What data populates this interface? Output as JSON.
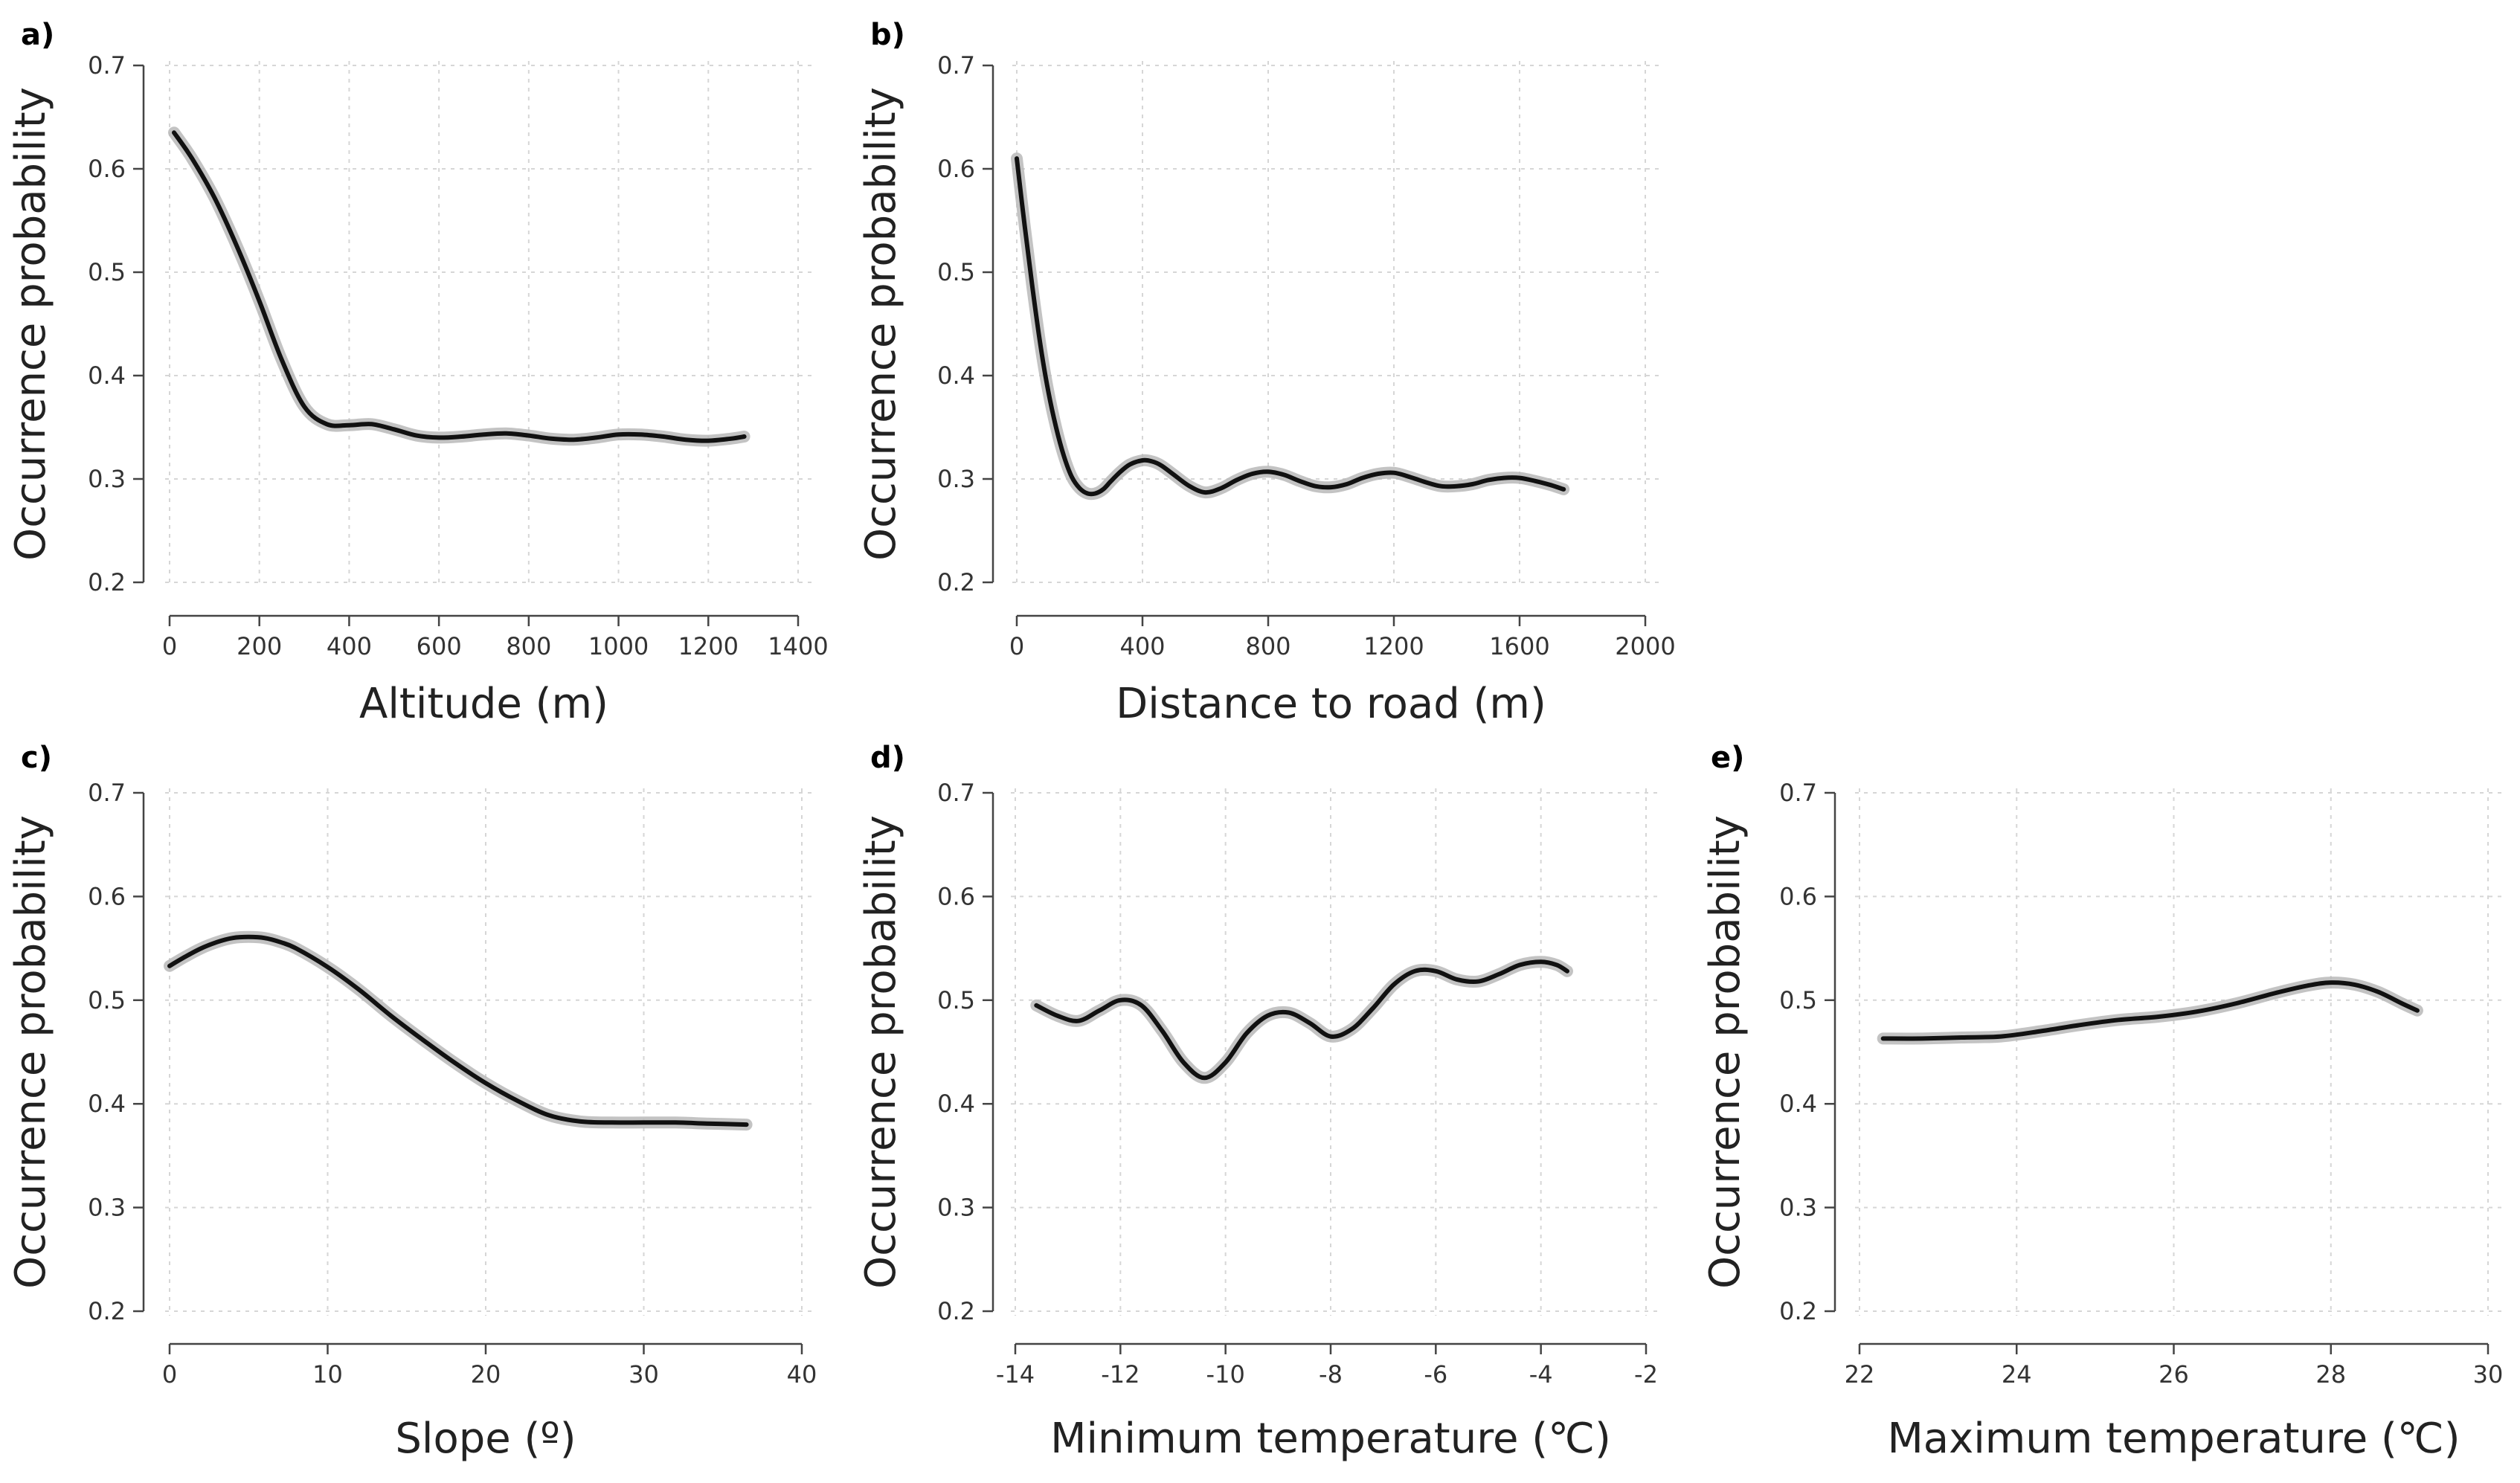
{
  "chart_data": [
    {
      "type": "line",
      "panel": "a)",
      "xlabel": "Altitude (m)",
      "ylabel": "Occurrence probability",
      "xlim": [
        0,
        1400
      ],
      "ylim": [
        0.2,
        0.7
      ],
      "xticks": [
        "0",
        "200",
        "400",
        "600",
        "800",
        "1000",
        "1200",
        "1400"
      ],
      "xtick_values": [
        0,
        200,
        400,
        600,
        800,
        1000,
        1200,
        1400
      ],
      "yticks": [
        "0.2",
        "0.3",
        "0.4",
        "0.5",
        "0.6",
        "0.7"
      ],
      "ytick_values": [
        0.2,
        0.3,
        0.4,
        0.5,
        0.6,
        0.7
      ],
      "grid": true,
      "x": [
        10,
        50,
        100,
        150,
        200,
        250,
        300,
        350,
        400,
        450,
        500,
        550,
        600,
        650,
        700,
        750,
        800,
        850,
        900,
        950,
        1000,
        1050,
        1100,
        1150,
        1200,
        1250,
        1280
      ],
      "y": [
        0.635,
        0.61,
        0.572,
        0.525,
        0.472,
        0.415,
        0.37,
        0.353,
        0.352,
        0.353,
        0.348,
        0.342,
        0.34,
        0.341,
        0.343,
        0.344,
        0.342,
        0.339,
        0.338,
        0.34,
        0.343,
        0.343,
        0.341,
        0.338,
        0.337,
        0.339,
        0.341
      ]
    },
    {
      "type": "line",
      "panel": "b)",
      "xlabel": "Distance to road (m)",
      "ylabel": "Occurrence probability",
      "xlim": [
        0,
        2000
      ],
      "ylim": [
        0.2,
        0.7
      ],
      "xticks": [
        "0",
        "400",
        "800",
        "1200",
        "1600",
        "2000"
      ],
      "xtick_values": [
        0,
        400,
        800,
        1200,
        1600,
        2000
      ],
      "yticks": [
        "0.2",
        "0.3",
        "0.4",
        "0.5",
        "0.6",
        "0.7"
      ],
      "ytick_values": [
        0.2,
        0.3,
        0.4,
        0.5,
        0.6,
        0.7
      ],
      "grid": true,
      "x": [
        0,
        25,
        50,
        75,
        100,
        125,
        150,
        175,
        200,
        225,
        250,
        275,
        300,
        330,
        360,
        400,
        430,
        460,
        500,
        550,
        600,
        650,
        700,
        750,
        800,
        850,
        900,
        950,
        1000,
        1050,
        1100,
        1150,
        1200,
        1250,
        1300,
        1350,
        1400,
        1450,
        1500,
        1550,
        1600,
        1650,
        1700,
        1740
      ],
      "y": [
        0.61,
        0.545,
        0.485,
        0.43,
        0.385,
        0.35,
        0.322,
        0.302,
        0.291,
        0.286,
        0.286,
        0.29,
        0.298,
        0.307,
        0.314,
        0.318,
        0.317,
        0.313,
        0.304,
        0.293,
        0.287,
        0.291,
        0.299,
        0.305,
        0.307,
        0.304,
        0.298,
        0.293,
        0.292,
        0.295,
        0.301,
        0.305,
        0.306,
        0.302,
        0.297,
        0.293,
        0.293,
        0.295,
        0.299,
        0.301,
        0.301,
        0.298,
        0.294,
        0.29
      ]
    },
    {
      "type": "line",
      "panel": "c)",
      "xlabel": "Slope (º)",
      "ylabel": "Occurrence probability",
      "xlim": [
        0,
        40
      ],
      "ylim": [
        0.2,
        0.7
      ],
      "xticks": [
        "0",
        "10",
        "20",
        "30",
        "40"
      ],
      "xtick_values": [
        0,
        10,
        20,
        30,
        40
      ],
      "yticks": [
        "0.2",
        "0.3",
        "0.4",
        "0.5",
        "0.6",
        "0.7"
      ],
      "ytick_values": [
        0.2,
        0.3,
        0.4,
        0.5,
        0.6,
        0.7
      ],
      "grid": true,
      "x": [
        0,
        1,
        2,
        3,
        4,
        5,
        6,
        7,
        8,
        10,
        12,
        14,
        16,
        18,
        20,
        22,
        24,
        26,
        28,
        30,
        32,
        34,
        36.5
      ],
      "y": [
        0.533,
        0.542,
        0.55,
        0.556,
        0.56,
        0.561,
        0.56,
        0.556,
        0.55,
        0.532,
        0.51,
        0.485,
        0.462,
        0.44,
        0.42,
        0.403,
        0.389,
        0.383,
        0.382,
        0.382,
        0.382,
        0.381,
        0.38
      ]
    },
    {
      "type": "line",
      "panel": "d)",
      "xlabel": "Minimum temperature (℃)",
      "ylabel": "Occurrence probability",
      "xlim": [
        -14,
        -2
      ],
      "ylim": [
        0.2,
        0.7
      ],
      "xticks": [
        "-14",
        "-12",
        "-10",
        "-8",
        "-6",
        "-4",
        "-2"
      ],
      "xtick_values": [
        -14,
        -12,
        -10,
        -8,
        -6,
        -4,
        -2
      ],
      "yticks": [
        "0.2",
        "0.3",
        "0.4",
        "0.5",
        "0.6",
        "0.7"
      ],
      "ytick_values": [
        0.2,
        0.3,
        0.4,
        0.5,
        0.6,
        0.7
      ],
      "grid": true,
      "x": [
        -13.6,
        -13.2,
        -12.8,
        -12.4,
        -12.0,
        -11.6,
        -11.2,
        -10.8,
        -10.4,
        -10.0,
        -9.6,
        -9.2,
        -8.8,
        -8.4,
        -8.0,
        -7.6,
        -7.2,
        -6.8,
        -6.4,
        -6.0,
        -5.6,
        -5.2,
        -4.8,
        -4.4,
        -4.0,
        -3.7,
        -3.5
      ],
      "y": [
        0.495,
        0.485,
        0.48,
        0.49,
        0.5,
        0.495,
        0.47,
        0.44,
        0.425,
        0.44,
        0.468,
        0.485,
        0.488,
        0.478,
        0.465,
        0.472,
        0.492,
        0.515,
        0.528,
        0.528,
        0.52,
        0.518,
        0.525,
        0.534,
        0.537,
        0.534,
        0.528
      ]
    },
    {
      "type": "line",
      "panel": "e)",
      "xlabel": "Maximum temperature (℃)",
      "ylabel": "Occurrence probability",
      "xlim": [
        22,
        30
      ],
      "ylim": [
        0.2,
        0.7
      ],
      "xticks": [
        "22",
        "24",
        "26",
        "28",
        "30"
      ],
      "xtick_values": [
        22,
        24,
        26,
        28,
        30
      ],
      "yticks": [
        "0.2",
        "0.3",
        "0.4",
        "0.5",
        "0.6",
        "0.7"
      ],
      "ytick_values": [
        0.2,
        0.3,
        0.4,
        0.5,
        0.6,
        0.7
      ],
      "grid": true,
      "x": [
        22.3,
        22.8,
        23.3,
        23.8,
        24.3,
        24.8,
        25.3,
        25.8,
        26.3,
        26.8,
        27.3,
        27.7,
        28.0,
        28.3,
        28.6,
        28.9,
        29.1
      ],
      "y": [
        0.463,
        0.463,
        0.464,
        0.465,
        0.47,
        0.476,
        0.481,
        0.484,
        0.489,
        0.497,
        0.507,
        0.514,
        0.517,
        0.515,
        0.508,
        0.497,
        0.49
      ]
    }
  ]
}
